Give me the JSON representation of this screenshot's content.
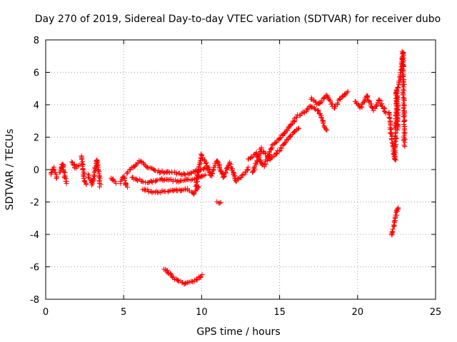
{
  "chart_data": {
    "type": "scatter",
    "title": "Day 270 of 2019, Sidereal Day-to-day VTEC variation (SDTVAR) for receiver dubo",
    "xlabel": "GPS time / hours",
    "ylabel": "SDTVAR / TECUs",
    "xlim": [
      0,
      25
    ],
    "ylim": [
      -8,
      8
    ],
    "xticks": [
      "0",
      "5",
      "10",
      "15",
      "20",
      "25"
    ],
    "yticks": [
      "-8",
      "-6",
      "-4",
      "-2",
      "0",
      "2",
      "4",
      "6",
      "8"
    ],
    "grid": true,
    "marker": "+",
    "marker_color": "#ff0000",
    "series": [
      {
        "name": "SDTVAR",
        "segments": [
          {
            "x": [
              0.3,
              0.5,
              0.7
            ],
            "y": [
              -0.3,
              0.1,
              -0.5
            ]
          },
          {
            "x": [
              0.9,
              1.1,
              1.3
            ],
            "y": [
              -0.2,
              0.4,
              -0.8
            ]
          },
          {
            "x": [
              1.7,
              1.9,
              2.1
            ],
            "y": [
              0.5,
              0.1,
              0.3
            ]
          },
          {
            "x": [
              2.3,
              2.5,
              2.6
            ],
            "y": [
              0.8,
              -0.7,
              -0.9
            ]
          },
          {
            "x": [
              2.7,
              3.0,
              3.3,
              3.5
            ],
            "y": [
              -0.3,
              -0.9,
              0.6,
              -1.0
            ]
          },
          {
            "x": [
              4.2,
              4.5
            ],
            "y": [
              -0.5,
              -0.8
            ]
          },
          {
            "x": [
              4.8,
              5.0,
              5.2
            ],
            "y": [
              -0.8,
              -0.4,
              -1.1
            ]
          },
          {
            "x": [
              5.2,
              6.0,
              7.0,
              8.0,
              9.0,
              10.0,
              10.5
            ],
            "y": [
              -0.2,
              0.5,
              -0.1,
              -0.2,
              -0.3,
              0.0,
              0.1
            ]
          },
          {
            "x": [
              5.5,
              6.5,
              7.5,
              8.5,
              9.5,
              10.2
            ],
            "y": [
              -0.5,
              -0.8,
              -0.6,
              -0.7,
              -0.6,
              -0.3
            ]
          },
          {
            "x": [
              6.2,
              7.0,
              8.0,
              9.0,
              9.5,
              9.8
            ],
            "y": [
              -1.2,
              -1.4,
              -1.3,
              -1.2,
              -1.5,
              -1.0
            ]
          },
          {
            "x": [
              7.6,
              8.2,
              8.9,
              9.5,
              10.0
            ],
            "y": [
              -6.1,
              -6.7,
              -7.05,
              -6.9,
              -6.5
            ]
          },
          {
            "x": [
              9.6,
              10.0,
              10.3,
              10.6,
              11.0,
              11.4,
              11.8,
              12.2,
              12.6,
              13.0
            ],
            "y": [
              -1.1,
              0.9,
              0.3,
              -0.4,
              0.6,
              -0.5,
              0.4,
              -0.7,
              -0.4,
              0.1
            ]
          },
          {
            "x": [
              11.0,
              11.2
            ],
            "y": [
              -2.05,
              -2.05
            ]
          },
          {
            "x": [
              13.0,
              13.5,
              14.0,
              14.5,
              15.0,
              15.5,
              16.0
            ],
            "y": [
              0.6,
              1.0,
              0.2,
              1.4,
              1.9,
              2.5,
              3.1
            ]
          },
          {
            "x": [
              13.3,
              13.8,
              14.4,
              15.0,
              15.6,
              16.2
            ],
            "y": [
              -0.2,
              1.3,
              0.6,
              1.2,
              2.0,
              2.6
            ]
          },
          {
            "x": [
              16.0,
              16.5,
              17.0,
              17.5,
              18.0
            ],
            "y": [
              3.2,
              3.5,
              3.9,
              3.6,
              2.4
            ]
          },
          {
            "x": [
              17.0,
              17.5,
              18.0,
              18.5,
              19.0,
              19.4
            ],
            "y": [
              4.4,
              4.0,
              4.6,
              3.8,
              4.5,
              4.8
            ]
          },
          {
            "x": [
              19.8,
              20.2,
              20.6,
              21.0,
              21.4,
              21.8
            ],
            "y": [
              4.2,
              3.8,
              4.6,
              3.7,
              4.3,
              3.5
            ]
          },
          {
            "x": [
              22.0,
              22.2,
              22.4,
              22.5,
              22.6
            ],
            "y": [
              3.6,
              1.8,
              0.6,
              5.0,
              2.5
            ]
          },
          {
            "x": [
              22.2,
              22.4,
              22.6
            ],
            "y": [
              -4.1,
              -3.1,
              -2.3
            ]
          },
          {
            "x": [
              22.6,
              22.8,
              22.9,
              23.0,
              23.0
            ],
            "y": [
              5.0,
              6.0,
              7.3,
              2.0,
              1.5
            ]
          }
        ]
      }
    ]
  }
}
